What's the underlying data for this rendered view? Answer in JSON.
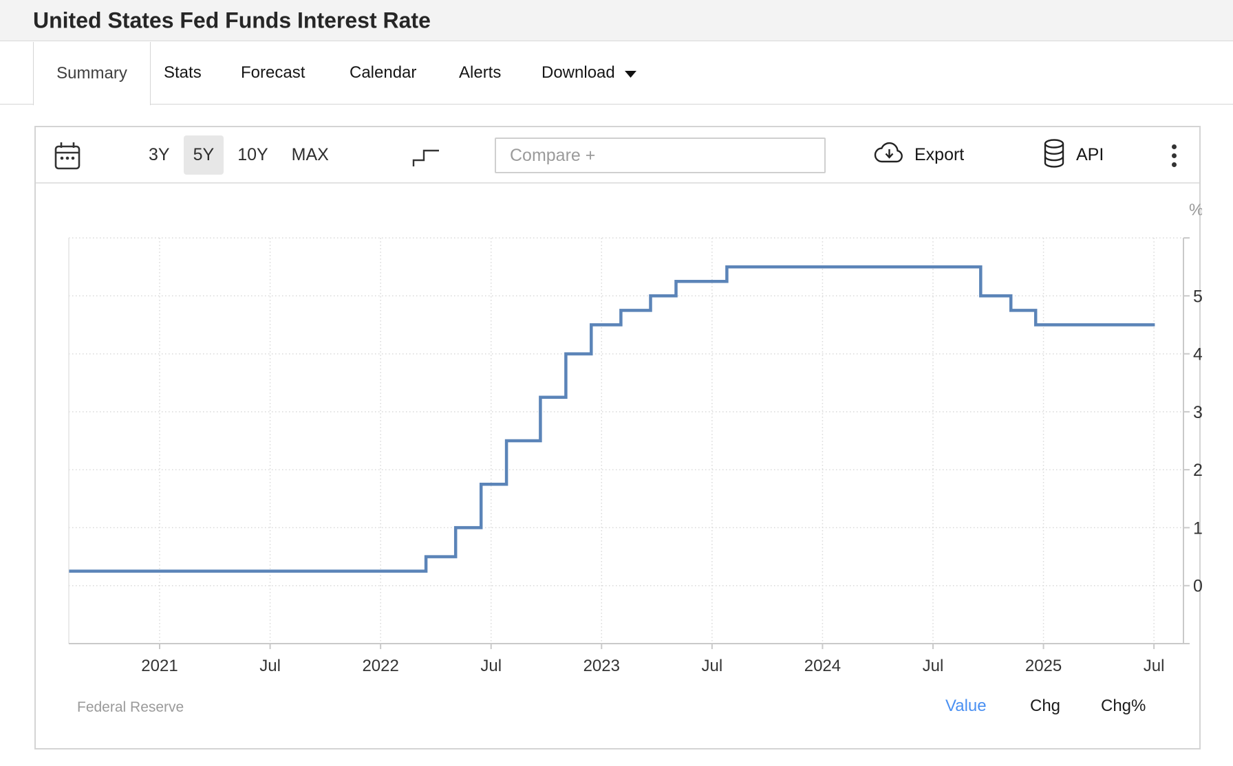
{
  "page": {
    "title": "United States Fed Funds Interest Rate"
  },
  "tabs": {
    "items": [
      "Summary",
      "Stats",
      "Forecast",
      "Calendar",
      "Alerts",
      "Download"
    ],
    "active": "Summary"
  },
  "toolbar": {
    "ranges": [
      "3Y",
      "5Y",
      "10Y",
      "MAX"
    ],
    "active_range": "5Y",
    "compare_placeholder": "Compare +",
    "export_label": "Export",
    "api_label": "API",
    "icons": [
      "calendar-icon",
      "step-line-icon",
      "cloud-download-icon",
      "database-icon",
      "kebab-menu-icon"
    ]
  },
  "footer": {
    "source": "Federal Reserve",
    "modes": [
      "Value",
      "Chg",
      "Chg%"
    ],
    "active_mode": "Value"
  },
  "colors": {
    "line": "#5b84b8",
    "accent_blue": "#4a90f2",
    "grid": "#d9d9d9",
    "axis": "#c9c9c9",
    "axis_label": "#333333",
    "unit_label": "#999999"
  },
  "chart_data": {
    "type": "line",
    "step": true,
    "series_name": "United States Fed Funds Interest Rate",
    "unit_label": "%",
    "source": "Federal Reserve",
    "ylim": [
      -1,
      6
    ],
    "y_ticks": [
      0,
      1,
      2,
      3,
      4,
      5
    ],
    "grid": true,
    "x_ticks": [
      {
        "label": "2021",
        "year": 2021.0
      },
      {
        "label": "Jul",
        "year": 2021.5
      },
      {
        "label": "2022",
        "year": 2022.0
      },
      {
        "label": "Jul",
        "year": 2022.5
      },
      {
        "label": "2023",
        "year": 2023.0
      },
      {
        "label": "Jul",
        "year": 2023.5
      },
      {
        "label": "2024",
        "year": 2024.0
      },
      {
        "label": "Jul",
        "year": 2024.5
      },
      {
        "label": "2025",
        "year": 2025.0
      },
      {
        "label": "Jul",
        "year": 2025.5
      }
    ],
    "points": [
      {
        "date": "2020-08-04",
        "value": 0.25
      },
      {
        "date": "2022-03-17",
        "value": 0.5
      },
      {
        "date": "2022-05-05",
        "value": 1.0
      },
      {
        "date": "2022-06-16",
        "value": 1.75
      },
      {
        "date": "2022-07-28",
        "value": 2.5
      },
      {
        "date": "2022-09-22",
        "value": 3.25
      },
      {
        "date": "2022-11-03",
        "value": 4.0
      },
      {
        "date": "2022-12-15",
        "value": 4.5
      },
      {
        "date": "2023-02-02",
        "value": 4.75
      },
      {
        "date": "2023-03-23",
        "value": 5.0
      },
      {
        "date": "2023-05-04",
        "value": 5.25
      },
      {
        "date": "2023-07-27",
        "value": 5.5
      },
      {
        "date": "2024-09-19",
        "value": 5.0
      },
      {
        "date": "2024-11-08",
        "value": 4.75
      },
      {
        "date": "2024-12-19",
        "value": 4.5
      },
      {
        "date": "2025-07-04",
        "value": 4.5
      }
    ]
  }
}
